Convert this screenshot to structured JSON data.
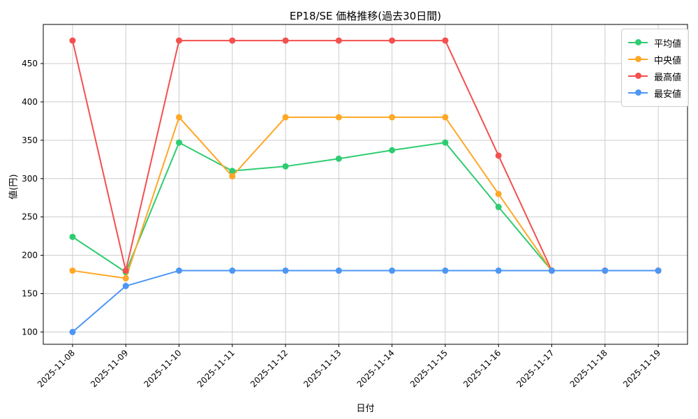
{
  "title": "EP18/SE 価格推移(過去30日間)",
  "axes": {
    "xlabel": "日付",
    "ylabel": "値(円)"
  },
  "colors": {
    "grid": "#cccccc",
    "spine": "#000000",
    "background": "#ffffff"
  },
  "chart_data": {
    "type": "line",
    "title": "EP18/SE 価格推移(過去30日間)",
    "xlabel": "日付",
    "ylabel": "値(円)",
    "grid": true,
    "legend_position": "upper right",
    "categories": [
      "2025-11-08",
      "2025-11-09",
      "2025-11-10",
      "2025-11-11",
      "2025-11-12",
      "2025-11-13",
      "2025-11-14",
      "2025-11-15",
      "2025-11-16",
      "2025-11-17",
      "2025-11-18",
      "2025-11-19"
    ],
    "yticks": [
      100,
      150,
      200,
      250,
      300,
      350,
      400,
      450
    ],
    "ylim": [
      84,
      501
    ],
    "series": [
      {
        "id": "mean",
        "name": "平均値",
        "color": "#2ecc71",
        "values": [
          224,
          178,
          347,
          310,
          316,
          326,
          337,
          347,
          263,
          180,
          180,
          180
        ]
      },
      {
        "id": "median",
        "name": "中央値",
        "color": "#ffa726",
        "values": [
          180,
          170,
          380,
          303,
          380,
          380,
          380,
          380,
          280,
          180,
          180,
          180
        ]
      },
      {
        "id": "max",
        "name": "最高値",
        "color": "#f3504e",
        "values": [
          480,
          180,
          480,
          480,
          480,
          480,
          480,
          480,
          330,
          180,
          180,
          180
        ]
      },
      {
        "id": "min",
        "name": "最安値",
        "color": "#4d96f5",
        "values": [
          100,
          160,
          180,
          180,
          180,
          180,
          180,
          180,
          180,
          180,
          180,
          180
        ]
      }
    ]
  }
}
